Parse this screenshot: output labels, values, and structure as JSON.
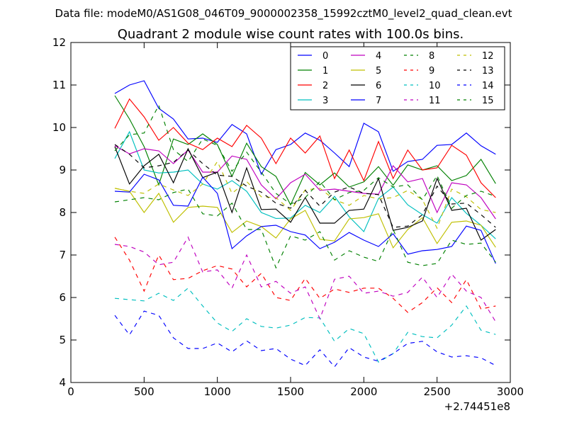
{
  "figure": {
    "suptitle": "Data file: modeM0/AS1G08_046T09_9000002358_15992cztM0_level2_quad_clean.evt"
  },
  "chart_data": {
    "type": "line",
    "title": "Quadrant 2 module wise count rates with 100.0s bins.",
    "xlabel": "",
    "ylabel": "",
    "xlim": [
      0,
      3000
    ],
    "ylim": [
      4,
      12
    ],
    "x_offset_label": "+2.74451e8",
    "x_ticks": [
      "0",
      "500",
      "1000",
      "1500",
      "2000",
      "2500",
      "3000"
    ],
    "y_ticks": [
      "4",
      "5",
      "6",
      "7",
      "8",
      "9",
      "10",
      "11",
      "12"
    ],
    "grid": false,
    "legend": {
      "position": "top-right",
      "columns": 4
    },
    "x": [
      300,
      400,
      500,
      600,
      700,
      800,
      900,
      1000,
      1100,
      1200,
      1300,
      1400,
      1500,
      1600,
      1700,
      1800,
      1900,
      2000,
      2100,
      2200,
      2300,
      2400,
      2500,
      2600,
      2700,
      2800,
      2900
    ],
    "series": [
      {
        "name": "0",
        "color": "#0000ff",
        "style": "solid",
        "values": [
          10.8,
          11.0,
          11.1,
          10.45,
          10.2,
          9.73,
          9.75,
          9.65,
          10.07,
          9.85,
          8.9,
          9.48,
          9.6,
          9.87,
          9.7,
          9.4,
          9.08,
          10.1,
          9.9,
          8.97,
          9.2,
          9.25,
          9.58,
          9.6,
          9.87,
          9.57,
          9.37
        ]
      },
      {
        "name": "1",
        "color": "#008000",
        "style": "solid",
        "values": [
          10.75,
          10.2,
          9.55,
          8.65,
          9.73,
          9.6,
          9.85,
          9.6,
          8.85,
          9.63,
          9.08,
          8.85,
          8.18,
          8.94,
          8.65,
          8.93,
          8.6,
          8.72,
          9.08,
          8.64,
          9.12,
          9.0,
          9.1,
          8.75,
          8.87,
          9.25,
          8.68
        ]
      },
      {
        "name": "2",
        "color": "#ff0000",
        "style": "solid",
        "values": [
          9.98,
          10.67,
          10.25,
          9.7,
          10.0,
          9.63,
          9.48,
          9.75,
          9.55,
          10.05,
          9.75,
          9.15,
          9.75,
          9.4,
          9.8,
          8.8,
          9.47,
          8.75,
          9.67,
          8.8,
          9.47,
          9.0,
          9.05,
          9.58,
          9.35,
          8.7,
          8.35
        ]
      },
      {
        "name": "3",
        "color": "#00bfbf",
        "style": "solid",
        "values": [
          9.27,
          9.9,
          9.0,
          8.93,
          8.95,
          9.0,
          8.67,
          8.55,
          8.75,
          8.5,
          8.0,
          7.86,
          7.87,
          8.17,
          8.0,
          8.38,
          7.9,
          7.55,
          8.33,
          8.6,
          8.18,
          7.95,
          7.75,
          8.35,
          7.98,
          7.7,
          7.38
        ]
      },
      {
        "name": "4",
        "color": "#bf00bf",
        "style": "solid",
        "values": [
          9.57,
          9.38,
          9.5,
          9.45,
          9.15,
          9.47,
          8.95,
          8.95,
          9.33,
          9.25,
          8.65,
          8.32,
          8.7,
          8.9,
          8.52,
          8.55,
          8.5,
          8.45,
          8.43,
          9.1,
          8.72,
          8.8,
          8.0,
          8.7,
          8.65,
          8.35,
          7.85
        ]
      },
      {
        "name": "5",
        "color": "#bfbf00",
        "style": "solid",
        "values": [
          8.57,
          8.5,
          8.0,
          8.45,
          7.77,
          8.12,
          8.15,
          8.12,
          7.53,
          7.8,
          7.67,
          7.4,
          7.85,
          8.05,
          7.37,
          7.33,
          7.85,
          7.88,
          7.97,
          7.17,
          7.6,
          7.88,
          7.27,
          7.77,
          7.8,
          7.7,
          7.18
        ]
      },
      {
        "name": "6",
        "color": "#000000",
        "style": "solid",
        "values": [
          9.55,
          8.67,
          9.1,
          9.37,
          8.7,
          9.5,
          8.82,
          8.95,
          8.0,
          9.05,
          8.07,
          8.08,
          7.77,
          8.35,
          7.75,
          7.75,
          8.05,
          8.08,
          8.8,
          7.58,
          7.65,
          7.8,
          8.8,
          8.05,
          8.1,
          7.35,
          7.6
        ]
      },
      {
        "name": "7",
        "color": "#0000ff",
        "style": "solid",
        "values": [
          8.5,
          8.48,
          8.9,
          8.77,
          8.17,
          8.15,
          8.83,
          8.45,
          7.15,
          7.45,
          7.67,
          7.7,
          7.55,
          7.47,
          7.15,
          7.3,
          7.53,
          7.35,
          7.2,
          7.5,
          7.02,
          7.1,
          7.13,
          7.2,
          7.68,
          7.58,
          6.8
        ]
      },
      {
        "name": "8",
        "color": "#008000",
        "style": "dashed",
        "values": [
          8.25,
          8.3,
          8.35,
          8.3,
          8.47,
          8.55,
          7.97,
          7.92,
          8.22,
          7.6,
          7.6,
          6.7,
          7.45,
          7.35,
          7.55,
          6.88,
          7.1,
          6.95,
          6.85,
          7.6,
          6.83,
          6.75,
          6.8,
          7.35,
          7.25,
          7.28,
          6.83
        ]
      },
      {
        "name": "9",
        "color": "#ff0000",
        "style": "dashed",
        "values": [
          7.42,
          6.88,
          6.15,
          7.0,
          6.42,
          6.45,
          6.63,
          6.75,
          6.67,
          6.25,
          6.57,
          6.0,
          5.93,
          6.45,
          5.98,
          6.2,
          6.12,
          6.22,
          6.22,
          5.98,
          5.65,
          5.88,
          6.23,
          5.88,
          6.42,
          5.73,
          5.8
        ]
      },
      {
        "name": "10",
        "color": "#00bfbf",
        "style": "dashed",
        "values": [
          5.98,
          5.95,
          5.92,
          6.1,
          5.93,
          6.22,
          5.8,
          5.4,
          5.2,
          5.5,
          5.32,
          5.28,
          5.35,
          5.53,
          5.52,
          4.97,
          5.27,
          5.15,
          4.48,
          4.68,
          5.18,
          5.08,
          5.05,
          5.35,
          5.8,
          5.23,
          5.13
        ]
      },
      {
        "name": "11",
        "color": "#bf00bf",
        "style": "dashed",
        "values": [
          7.25,
          7.2,
          7.07,
          6.77,
          6.83,
          7.42,
          6.6,
          6.65,
          6.22,
          7.0,
          6.25,
          6.38,
          6.1,
          6.25,
          5.5,
          6.43,
          6.5,
          6.1,
          6.15,
          6.03,
          6.12,
          6.48,
          6.0,
          6.55,
          6.15,
          6.0,
          5.43
        ]
      },
      {
        "name": "12",
        "color": "#bfbf00",
        "style": "dashed",
        "values": [
          8.57,
          8.5,
          8.45,
          8.67,
          8.53,
          8.4,
          8.67,
          9.2,
          8.45,
          8.73,
          8.37,
          8.35,
          8.05,
          8.53,
          8.57,
          8.3,
          8.17,
          8.4,
          8.32,
          8.35,
          8.52,
          8.3,
          7.63,
          8.55,
          8.37,
          8.07,
          8.0
        ]
      },
      {
        "name": "13",
        "color": "#000000",
        "style": "dashed",
        "values": [
          9.6,
          9.37,
          9.05,
          9.1,
          9.18,
          9.47,
          9.15,
          8.88,
          8.85,
          8.62,
          8.48,
          8.22,
          8.1,
          8.52,
          8.15,
          8.48,
          8.6,
          8.45,
          8.42,
          7.65,
          7.68,
          7.95,
          8.62,
          8.2,
          8.22,
          7.95,
          7.65
        ]
      },
      {
        "name": "14",
        "color": "#0000ff",
        "style": "dashed",
        "values": [
          5.58,
          5.12,
          5.68,
          5.58,
          5.05,
          4.8,
          4.8,
          4.93,
          4.72,
          4.98,
          4.75,
          4.8,
          4.55,
          4.4,
          4.77,
          4.37,
          4.82,
          4.6,
          4.5,
          4.68,
          4.92,
          4.97,
          4.72,
          4.6,
          4.63,
          4.58,
          4.4
        ]
      },
      {
        "name": "15",
        "color": "#008000",
        "style": "dashed",
        "values": [
          9.45,
          9.83,
          9.87,
          10.52,
          9.48,
          9.2,
          9.73,
          9.58,
          8.97,
          9.42,
          8.95,
          8.45,
          8.2,
          8.35,
          8.73,
          8.3,
          8.47,
          8.52,
          8.82,
          8.6,
          8.65,
          8.3,
          8.87,
          8.1,
          8.4,
          8.5,
          8.38
        ]
      }
    ]
  }
}
